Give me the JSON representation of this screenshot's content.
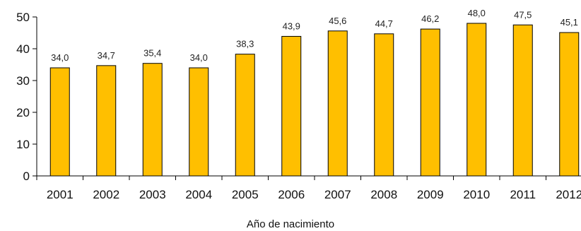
{
  "chart_data": {
    "type": "bar",
    "categories": [
      "2001",
      "2002",
      "2003",
      "2004",
      "2005",
      "2006",
      "2007",
      "2008",
      "2009",
      "2010",
      "2011",
      "2012"
    ],
    "values": [
      34.0,
      34.7,
      35.4,
      34.0,
      38.3,
      43.9,
      45.6,
      44.7,
      46.2,
      48.0,
      47.5,
      45.1
    ],
    "value_labels": [
      "34,0",
      "34,7",
      "35,4",
      "34,0",
      "38,3",
      "43,9",
      "45,6",
      "44,7",
      "46,2",
      "48,0",
      "47,5",
      "45,1"
    ],
    "xlabel": "Año de nacimiento",
    "ylabel": "",
    "ylim": [
      0,
      50
    ],
    "yticks": [
      "0",
      "10",
      "20",
      "30",
      "40",
      "50"
    ],
    "grid": false,
    "legend": "none",
    "bar_color": "#FFBF00",
    "bar_edge_color": "#000000"
  }
}
